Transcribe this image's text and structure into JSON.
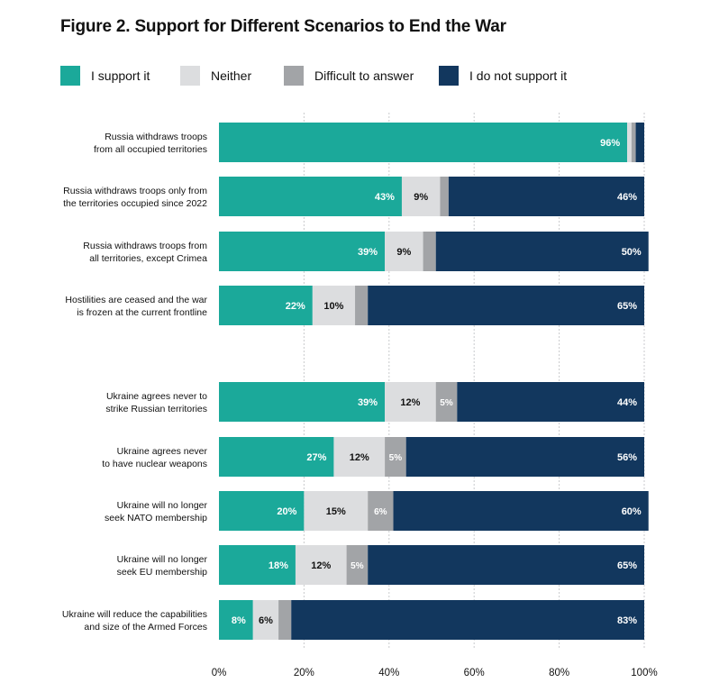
{
  "title": "Figure 2. Support for Different Scenarios to End the War",
  "colors": {
    "support": "#1ba99a",
    "neither": "#dcdddf",
    "difficult": "#a2a4a7",
    "not_support": "#12375e"
  },
  "legend": [
    {
      "key": "support",
      "label": "I support it"
    },
    {
      "key": "neither",
      "label": "Neither"
    },
    {
      "key": "difficult",
      "label": "Difficult to answer"
    },
    {
      "key": "not_support",
      "label": "I do not support it"
    }
  ],
  "chart_data": {
    "type": "bar",
    "orientation": "horizontal",
    "stacked": true,
    "title": "Figure 2. Support for Different Scenarios to End the War",
    "xlabel": "",
    "ylabel": "",
    "xlim": [
      0,
      100
    ],
    "xticks": [
      0,
      20,
      40,
      60,
      80,
      100
    ],
    "xtick_labels": [
      "0%",
      "20%",
      "40%",
      "60%",
      "80%",
      "100%"
    ],
    "grid": true,
    "categories": [
      [
        "Russia withdraws troops",
        "from all occupied territories"
      ],
      [
        "Russia withdraws troops only from",
        "the territories occupied since 2022"
      ],
      [
        "Russia withdraws troops from",
        "all territories, except Crimea"
      ],
      [
        "Hostilities are ceased and the war",
        "is frozen at the current frontline"
      ],
      [
        "Ukraine agrees never to",
        "strike Russian territories"
      ],
      [
        "Ukraine agrees never",
        "to have nuclear weapons"
      ],
      [
        "Ukraine will no longer",
        "seek NATO membership"
      ],
      [
        "Ukraine will no longer",
        "seek EU membership"
      ],
      [
        "Ukraine will reduce the capabilities",
        "and size of the Armed Forces"
      ]
    ],
    "series": [
      {
        "name": "I support it",
        "key": "support",
        "values": [
          96,
          43,
          39,
          22,
          39,
          27,
          20,
          18,
          8
        ]
      },
      {
        "name": "Neither",
        "key": "neither",
        "values": [
          1,
          9,
          9,
          10,
          12,
          12,
          15,
          12,
          6
        ]
      },
      {
        "name": "Difficult to answer",
        "key": "difficult",
        "values": [
          1,
          2,
          3,
          3,
          5,
          5,
          6,
          5,
          3
        ]
      },
      {
        "name": "I do not support it",
        "key": "not_support",
        "values": [
          2,
          46,
          50,
          65,
          44,
          56,
          60,
          65,
          83
        ]
      }
    ],
    "data_labels": [
      [
        "96%",
        "",
        "",
        ""
      ],
      [
        "43%",
        "9%",
        "",
        "46%"
      ],
      [
        "39%",
        "9%",
        "",
        "50%"
      ],
      [
        "22%",
        "10%",
        "",
        "65%"
      ],
      [
        "39%",
        "12%",
        "5%",
        "44%"
      ],
      [
        "27%",
        "12%",
        "5%",
        "56%"
      ],
      [
        "20%",
        "15%",
        "6%",
        "60%"
      ],
      [
        "18%",
        "12%",
        "5%",
        "65%"
      ],
      [
        "8%",
        "6%",
        "",
        "83%"
      ]
    ]
  }
}
